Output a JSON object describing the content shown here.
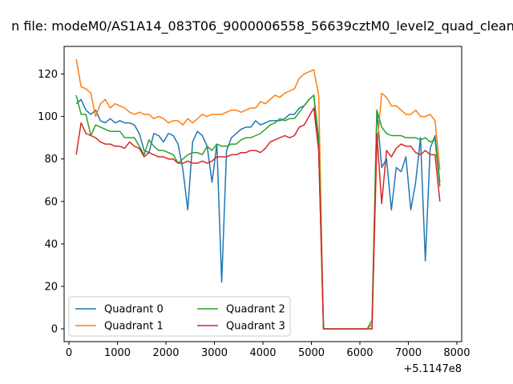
{
  "chart_data": {
    "type": "line",
    "title": "n file: modeM0/AS1A14_083T06_9000006558_56639cztM0_level2_quad_clean",
    "xlabel": "",
    "ylabel": "",
    "x_offset_label": "+5.1147e8",
    "xlim": [
      -100,
      8100
    ],
    "ylim": [
      -6,
      133
    ],
    "x_ticks": [
      0,
      1000,
      2000,
      3000,
      4000,
      5000,
      6000,
      7000,
      8000
    ],
    "x_tick_labels": [
      "0",
      "1000",
      "2000",
      "3000",
      "4000",
      "5000",
      "6000",
      "7000",
      "8000"
    ],
    "y_ticks": [
      0,
      20,
      40,
      60,
      80,
      100,
      120
    ],
    "y_tick_labels": [
      "0",
      "20",
      "40",
      "60",
      "80",
      "100",
      "120"
    ],
    "grid": false,
    "legend": {
      "placement": "lower-left",
      "columns": 2
    },
    "series": [
      {
        "name": "Quadrant 0",
        "color": "#1f77b4",
        "points": [
          [
            150,
            106
          ],
          [
            250,
            108
          ],
          [
            350,
            103
          ],
          [
            450,
            101
          ],
          [
            550,
            103
          ],
          [
            650,
            98
          ],
          [
            750,
            97
          ],
          [
            850,
            99
          ],
          [
            950,
            97
          ],
          [
            1050,
            98
          ],
          [
            1150,
            97
          ],
          [
            1250,
            97
          ],
          [
            1350,
            96
          ],
          [
            1450,
            92
          ],
          [
            1550,
            84
          ],
          [
            1650,
            83
          ],
          [
            1750,
            92
          ],
          [
            1850,
            91
          ],
          [
            1950,
            88
          ],
          [
            2050,
            92
          ],
          [
            2150,
            91
          ],
          [
            2250,
            87
          ],
          [
            2350,
            75
          ],
          [
            2450,
            56
          ],
          [
            2550,
            88
          ],
          [
            2650,
            93
          ],
          [
            2750,
            91
          ],
          [
            2850,
            86
          ],
          [
            2950,
            69
          ],
          [
            3050,
            87
          ],
          [
            3150,
            22
          ],
          [
            3250,
            84
          ],
          [
            3350,
            90
          ],
          [
            3450,
            92
          ],
          [
            3550,
            94
          ],
          [
            3650,
            95
          ],
          [
            3750,
            95
          ],
          [
            3850,
            98
          ],
          [
            3950,
            96
          ],
          [
            4050,
            97
          ],
          [
            4150,
            98
          ],
          [
            4250,
            98
          ],
          [
            4350,
            98
          ],
          [
            4450,
            99
          ],
          [
            4550,
            101
          ],
          [
            4650,
            101
          ],
          [
            4750,
            104
          ],
          [
            4850,
            105
          ],
          [
            4950,
            108
          ],
          [
            5050,
            110
          ],
          [
            5150,
            85
          ],
          [
            5250,
            0
          ],
          [
            5350,
            0
          ],
          [
            5450,
            0
          ],
          [
            5550,
            0
          ],
          [
            5650,
            0
          ],
          [
            5750,
            0
          ],
          [
            5850,
            0
          ],
          [
            5950,
            0
          ],
          [
            6050,
            0
          ],
          [
            6150,
            0
          ],
          [
            6250,
            0
          ],
          [
            6350,
            103
          ],
          [
            6450,
            76
          ],
          [
            6550,
            80
          ],
          [
            6650,
            56
          ],
          [
            6750,
            76
          ],
          [
            6850,
            74
          ],
          [
            6950,
            81
          ],
          [
            7050,
            56
          ],
          [
            7150,
            69
          ],
          [
            7250,
            90
          ],
          [
            7350,
            32
          ],
          [
            7450,
            85
          ],
          [
            7550,
            91
          ],
          [
            7650,
            69
          ]
        ]
      },
      {
        "name": "Quadrant 1",
        "color": "#ff7f0e",
        "points": [
          [
            150,
            127
          ],
          [
            250,
            114
          ],
          [
            350,
            113
          ],
          [
            450,
            111
          ],
          [
            550,
            100
          ],
          [
            650,
            106
          ],
          [
            750,
            108
          ],
          [
            850,
            104
          ],
          [
            950,
            106
          ],
          [
            1050,
            105
          ],
          [
            1150,
            104
          ],
          [
            1250,
            102
          ],
          [
            1350,
            101
          ],
          [
            1450,
            102
          ],
          [
            1550,
            101
          ],
          [
            1650,
            101
          ],
          [
            1750,
            99
          ],
          [
            1850,
            100
          ],
          [
            1950,
            99
          ],
          [
            2050,
            97
          ],
          [
            2150,
            98
          ],
          [
            2250,
            98
          ],
          [
            2350,
            96
          ],
          [
            2450,
            99
          ],
          [
            2550,
            97
          ],
          [
            2650,
            99
          ],
          [
            2750,
            101
          ],
          [
            2850,
            100
          ],
          [
            2950,
            101
          ],
          [
            3050,
            101
          ],
          [
            3150,
            101
          ],
          [
            3250,
            102
          ],
          [
            3350,
            103
          ],
          [
            3450,
            103
          ],
          [
            3550,
            102
          ],
          [
            3650,
            103
          ],
          [
            3750,
            104
          ],
          [
            3850,
            104
          ],
          [
            3950,
            107
          ],
          [
            4050,
            106
          ],
          [
            4150,
            108
          ],
          [
            4250,
            110
          ],
          [
            4350,
            109
          ],
          [
            4450,
            111
          ],
          [
            4550,
            112
          ],
          [
            4650,
            113
          ],
          [
            4750,
            118
          ],
          [
            4850,
            120
          ],
          [
            4950,
            121
          ],
          [
            5050,
            122
          ],
          [
            5150,
            110
          ],
          [
            5250,
            0
          ],
          [
            5350,
            0
          ],
          [
            5450,
            0
          ],
          [
            5550,
            0
          ],
          [
            5650,
            0
          ],
          [
            5750,
            0
          ],
          [
            5850,
            0
          ],
          [
            5950,
            0
          ],
          [
            6050,
            0
          ],
          [
            6150,
            0
          ],
          [
            6250,
            2
          ],
          [
            6350,
            85
          ],
          [
            6450,
            111
          ],
          [
            6550,
            109
          ],
          [
            6650,
            105
          ],
          [
            6750,
            105
          ],
          [
            6850,
            103
          ],
          [
            6950,
            101
          ],
          [
            7050,
            101
          ],
          [
            7150,
            103
          ],
          [
            7250,
            100
          ],
          [
            7350,
            100
          ],
          [
            7450,
            101
          ],
          [
            7550,
            98
          ],
          [
            7650,
            75
          ]
        ]
      },
      {
        "name": "Quadrant 2",
        "color": "#2ca02c",
        "points": [
          [
            150,
            110
          ],
          [
            250,
            101
          ],
          [
            350,
            101
          ],
          [
            450,
            91
          ],
          [
            550,
            96
          ],
          [
            650,
            95
          ],
          [
            750,
            94
          ],
          [
            850,
            93
          ],
          [
            950,
            93
          ],
          [
            1050,
            93
          ],
          [
            1150,
            90
          ],
          [
            1250,
            90
          ],
          [
            1350,
            90
          ],
          [
            1450,
            86
          ],
          [
            1550,
            82
          ],
          [
            1650,
            89
          ],
          [
            1750,
            86
          ],
          [
            1850,
            84
          ],
          [
            1950,
            84
          ],
          [
            2050,
            83
          ],
          [
            2150,
            82
          ],
          [
            2250,
            78
          ],
          [
            2350,
            80
          ],
          [
            2450,
            82
          ],
          [
            2550,
            83
          ],
          [
            2650,
            83
          ],
          [
            2750,
            82
          ],
          [
            2850,
            86
          ],
          [
            2950,
            84
          ],
          [
            3050,
            87
          ],
          [
            3150,
            86
          ],
          [
            3250,
            86
          ],
          [
            3350,
            87
          ],
          [
            3450,
            87
          ],
          [
            3550,
            89
          ],
          [
            3650,
            90
          ],
          [
            3750,
            90
          ],
          [
            3850,
            91
          ],
          [
            3950,
            92
          ],
          [
            4050,
            94
          ],
          [
            4150,
            96
          ],
          [
            4250,
            97
          ],
          [
            4350,
            99
          ],
          [
            4450,
            98
          ],
          [
            4550,
            99
          ],
          [
            4650,
            99
          ],
          [
            4750,
            102
          ],
          [
            4850,
            105
          ],
          [
            4950,
            108
          ],
          [
            5050,
            110
          ],
          [
            5150,
            90
          ],
          [
            5250,
            0
          ],
          [
            5350,
            0
          ],
          [
            5450,
            0
          ],
          [
            5550,
            0
          ],
          [
            5650,
            0
          ],
          [
            5750,
            0
          ],
          [
            5850,
            0
          ],
          [
            5950,
            0
          ],
          [
            6050,
            0
          ],
          [
            6150,
            0
          ],
          [
            6250,
            4
          ],
          [
            6350,
            103
          ],
          [
            6450,
            95
          ],
          [
            6550,
            92
          ],
          [
            6650,
            91
          ],
          [
            6750,
            91
          ],
          [
            6850,
            91
          ],
          [
            6950,
            90
          ],
          [
            7050,
            90
          ],
          [
            7150,
            90
          ],
          [
            7250,
            89
          ],
          [
            7350,
            90
          ],
          [
            7450,
            88
          ],
          [
            7550,
            89
          ],
          [
            7650,
            67
          ]
        ]
      },
      {
        "name": "Quadrant 3",
        "color": "#d62728",
        "points": [
          [
            150,
            82
          ],
          [
            250,
            97
          ],
          [
            350,
            92
          ],
          [
            450,
            91
          ],
          [
            550,
            90
          ],
          [
            650,
            88
          ],
          [
            750,
            87
          ],
          [
            850,
            87
          ],
          [
            950,
            86
          ],
          [
            1050,
            86
          ],
          [
            1150,
            85
          ],
          [
            1250,
            88
          ],
          [
            1350,
            86
          ],
          [
            1450,
            85
          ],
          [
            1550,
            81
          ],
          [
            1650,
            83
          ],
          [
            1750,
            82
          ],
          [
            1850,
            81
          ],
          [
            1950,
            81
          ],
          [
            2050,
            80
          ],
          [
            2150,
            80
          ],
          [
            2250,
            78
          ],
          [
            2350,
            78
          ],
          [
            2450,
            79
          ],
          [
            2550,
            78
          ],
          [
            2650,
            78
          ],
          [
            2750,
            79
          ],
          [
            2850,
            78
          ],
          [
            2950,
            79
          ],
          [
            3050,
            81
          ],
          [
            3150,
            81
          ],
          [
            3250,
            81
          ],
          [
            3350,
            82
          ],
          [
            3450,
            82
          ],
          [
            3550,
            83
          ],
          [
            3650,
            83
          ],
          [
            3750,
            84
          ],
          [
            3850,
            84
          ],
          [
            3950,
            83
          ],
          [
            4050,
            85
          ],
          [
            4150,
            88
          ],
          [
            4250,
            89
          ],
          [
            4350,
            90
          ],
          [
            4450,
            91
          ],
          [
            4550,
            90
          ],
          [
            4650,
            91
          ],
          [
            4750,
            95
          ],
          [
            4850,
            96
          ],
          [
            4950,
            100
          ],
          [
            5050,
            104
          ],
          [
            5150,
            84
          ],
          [
            5250,
            0
          ],
          [
            5350,
            0
          ],
          [
            5450,
            0
          ],
          [
            5550,
            0
          ],
          [
            5650,
            0
          ],
          [
            5750,
            0
          ],
          [
            5850,
            0
          ],
          [
            5950,
            0
          ],
          [
            6050,
            0
          ],
          [
            6150,
            0
          ],
          [
            6250,
            0
          ],
          [
            6350,
            92
          ],
          [
            6450,
            59
          ],
          [
            6550,
            84
          ],
          [
            6650,
            81
          ],
          [
            6750,
            85
          ],
          [
            6850,
            87
          ],
          [
            6950,
            86
          ],
          [
            7050,
            86
          ],
          [
            7150,
            83
          ],
          [
            7250,
            82
          ],
          [
            7350,
            84
          ],
          [
            7450,
            82
          ],
          [
            7550,
            82
          ],
          [
            7650,
            60
          ]
        ]
      }
    ]
  }
}
